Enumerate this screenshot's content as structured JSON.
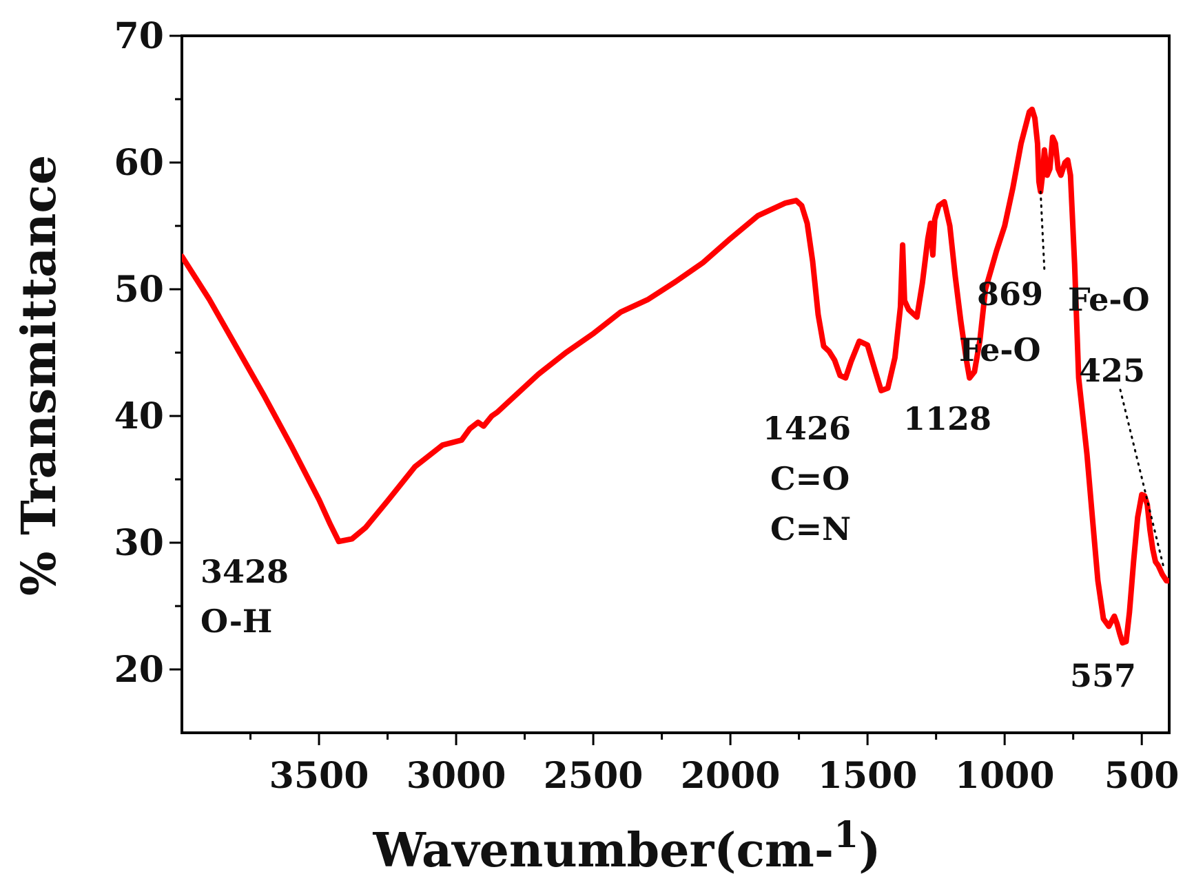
{
  "chart_data": {
    "type": "line",
    "xlabel": "Wavenumber(cm-",
    "xlabel_sup": "1",
    "xlabel_close": ")",
    "ylabel": "% Transmittance",
    "xlim": [
      4000,
      400
    ],
    "ylim": [
      15,
      70
    ],
    "x_reversed": true,
    "xticks": [
      3500,
      3000,
      2500,
      2000,
      1500,
      1000,
      500
    ],
    "yticks": [
      20,
      30,
      40,
      50,
      60,
      70
    ],
    "line_color": "#ff0000",
    "series": [
      {
        "x": [
          4000,
          3900,
          3800,
          3700,
          3600,
          3500,
          3460,
          3428,
          3380,
          3330,
          3250,
          3150,
          3050,
          2980,
          2950,
          2920,
          2900,
          2870,
          2850,
          2800,
          2700,
          2600,
          2500,
          2400,
          2300,
          2200,
          2100,
          2000,
          1900,
          1800,
          1760,
          1740,
          1720,
          1700,
          1680,
          1660,
          1640,
          1620,
          1600,
          1580,
          1560,
          1530,
          1500,
          1470,
          1450,
          1426,
          1400,
          1380,
          1372,
          1365,
          1350,
          1320,
          1300,
          1280,
          1270,
          1262,
          1255,
          1240,
          1220,
          1200,
          1180,
          1160,
          1140,
          1128,
          1110,
          1090,
          1070,
          1050,
          1030,
          1000,
          970,
          940,
          910,
          900,
          890,
          880,
          875,
          869,
          862,
          855,
          845,
          835,
          825,
          815,
          805,
          795,
          780,
          770,
          760,
          745,
          730,
          715,
          700,
          680,
          660,
          640,
          620,
          600,
          590,
          580,
          570,
          557,
          545,
          530,
          515,
          500,
          490,
          480,
          470,
          460,
          450,
          440,
          425,
          410,
          400
        ],
        "y": [
          52.6,
          49.2,
          45.4,
          41.6,
          37.6,
          33.4,
          31.5,
          30.1,
          30.3,
          31.2,
          33.3,
          36,
          37.7,
          38.1,
          39,
          39.5,
          39.2,
          40,
          40.3,
          41.3,
          43.3,
          45,
          46.5,
          48.2,
          49.2,
          50.6,
          52.1,
          54,
          55.8,
          56.8,
          57,
          56.6,
          55.2,
          52.2,
          48,
          45.5,
          45.1,
          44.4,
          43.2,
          43,
          44.3,
          45.9,
          45.6,
          43.4,
          42,
          42.2,
          44.6,
          48.6,
          53.5,
          49.1,
          48.4,
          47.8,
          50.5,
          54,
          55.2,
          52.7,
          55.5,
          56.6,
          56.9,
          55,
          51,
          47.5,
          44.5,
          43,
          43.5,
          46,
          50,
          51.5,
          53,
          55,
          58,
          61.5,
          64,
          64.2,
          63.5,
          61.5,
          58.5,
          57.7,
          59,
          61,
          59,
          59.5,
          62,
          61.5,
          59.5,
          59,
          60,
          60.2,
          59,
          52,
          43,
          40,
          37,
          32,
          27,
          24,
          23.4,
          24.2,
          23.6,
          22.8,
          22.1,
          22.2,
          24.5,
          28.5,
          32,
          33.8,
          33.7,
          33,
          31,
          29.5,
          28.5,
          28.2,
          27.5,
          27,
          27
        ]
      }
    ]
  },
  "annotations": [
    {
      "lines": [
        "3428",
        "O-H"
      ]
    },
    {
      "lines": [
        "1426",
        "C=O",
        "C=N"
      ]
    },
    {
      "lines": [
        "1128"
      ]
    },
    {
      "lines": [
        "Fe-O"
      ]
    },
    {
      "lines": [
        "869"
      ]
    },
    {
      "lines": [
        "Fe-O"
      ]
    },
    {
      "lines": [
        "425"
      ]
    },
    {
      "lines": [
        "557"
      ]
    }
  ]
}
